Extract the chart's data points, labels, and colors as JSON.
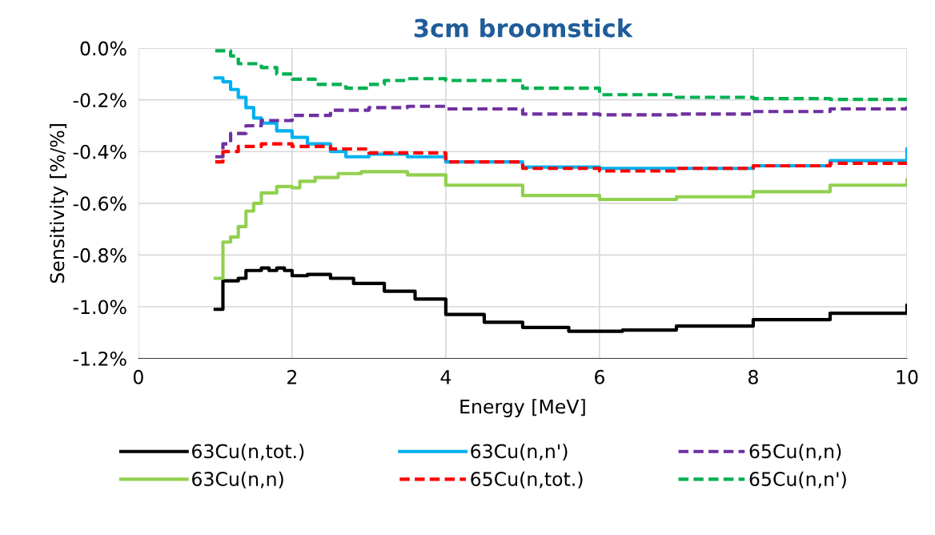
{
  "chart_data": {
    "type": "step",
    "title": "3cm broomstick",
    "xlabel": "Energy [MeV]",
    "ylabel": "Sensitivity [%/%]",
    "xlim": [
      0,
      10
    ],
    "xticks": [
      0,
      2,
      4,
      6,
      8,
      10
    ],
    "ylim": [
      -1.2,
      0
    ],
    "yticks": [
      {
        "value": -1.2,
        "label": "-1.2%"
      },
      {
        "value": -1.0,
        "label": "-1.0%"
      },
      {
        "value": -0.8,
        "label": "-0.8%"
      },
      {
        "value": -0.6,
        "label": "-0.6%"
      },
      {
        "value": -0.4,
        "label": "-0.4%"
      },
      {
        "value": -0.2,
        "label": "-0.2%"
      },
      {
        "value": 0,
        "label": "0.0%"
      }
    ],
    "grid": true,
    "legend": "bottom",
    "marker": "none",
    "series": [
      {
        "name": "63Cu(n,tot.)",
        "color": "#000000",
        "line_style": "solid",
        "x": [
          1.0,
          1.1,
          1.3,
          1.4,
          1.6,
          1.7,
          1.8,
          1.9,
          2.0,
          2.2,
          2.5,
          2.8,
          3.2,
          3.6,
          4.0,
          4.5,
          5.0,
          5.6,
          6.3,
          7,
          8,
          9,
          10
        ],
        "values": [
          -1.01,
          -0.9,
          -0.89,
          -0.86,
          -0.85,
          -0.86,
          -0.85,
          -0.86,
          -0.88,
          -0.875,
          -0.89,
          -0.91,
          -0.94,
          -0.97,
          -1.03,
          -1.06,
          -1.08,
          -1.095,
          -1.09,
          -1.075,
          -1.05,
          -1.025,
          -0.995
        ]
      },
      {
        "name": "63Cu(n,n)",
        "color": "#92d050",
        "line_style": "solid",
        "x": [
          1.0,
          1.1,
          1.2,
          1.3,
          1.4,
          1.5,
          1.6,
          1.8,
          2.0,
          2.1,
          2.3,
          2.6,
          2.9,
          3.5,
          4,
          5,
          6,
          7,
          8,
          9,
          10
        ],
        "values": [
          -0.89,
          -0.75,
          -0.73,
          -0.69,
          -0.63,
          -0.6,
          -0.56,
          -0.535,
          -0.54,
          -0.515,
          -0.5,
          -0.485,
          -0.478,
          -0.49,
          -0.53,
          -0.57,
          -0.585,
          -0.575,
          -0.555,
          -0.53,
          -0.51
        ]
      },
      {
        "name": "63Cu(n,n')",
        "color": "#00b0f0",
        "line_style": "solid",
        "x": [
          1.0,
          1.1,
          1.2,
          1.3,
          1.4,
          1.5,
          1.6,
          1.8,
          2.0,
          2.2,
          2.5,
          2.7,
          3,
          3.5,
          4,
          5,
          6,
          7,
          8,
          9,
          10
        ],
        "values": [
          -0.115,
          -0.13,
          -0.16,
          -0.19,
          -0.23,
          -0.27,
          -0.29,
          -0.32,
          -0.345,
          -0.37,
          -0.4,
          -0.42,
          -0.41,
          -0.42,
          -0.44,
          -0.46,
          -0.465,
          -0.465,
          -0.455,
          -0.435,
          -0.39
        ]
      },
      {
        "name": "65Cu(n,tot.)",
        "color": "#ff0000",
        "line_style": "dashed",
        "x": [
          1.0,
          1.1,
          1.3,
          1.6,
          2.0,
          2.5,
          3,
          4,
          5,
          6,
          7,
          8,
          9,
          10
        ],
        "values": [
          -0.44,
          -0.4,
          -0.38,
          -0.37,
          -0.38,
          -0.39,
          -0.405,
          -0.44,
          -0.465,
          -0.475,
          -0.465,
          -0.455,
          -0.445,
          -0.43
        ]
      },
      {
        "name": "65Cu(n,n)",
        "color": "#7030a0",
        "line_style": "dashed",
        "x": [
          1.0,
          1.1,
          1.2,
          1.4,
          1.6,
          2.0,
          2.5,
          3,
          3.5,
          4,
          5,
          6,
          7,
          8,
          9,
          10
        ],
        "values": [
          -0.42,
          -0.37,
          -0.33,
          -0.3,
          -0.28,
          -0.26,
          -0.24,
          -0.23,
          -0.225,
          -0.235,
          -0.255,
          -0.258,
          -0.255,
          -0.245,
          -0.235,
          -0.225
        ]
      },
      {
        "name": "65Cu(n,n')",
        "color": "#00b050",
        "line_style": "dashed",
        "x": [
          1.0,
          1.2,
          1.3,
          1.6,
          1.8,
          2.0,
          2.3,
          2.7,
          3.0,
          3.2,
          3.5,
          4,
          5,
          6,
          7,
          8,
          9,
          10
        ],
        "values": [
          -0.01,
          -0.03,
          -0.06,
          -0.075,
          -0.1,
          -0.12,
          -0.14,
          -0.155,
          -0.14,
          -0.125,
          -0.118,
          -0.125,
          -0.155,
          -0.18,
          -0.19,
          -0.195,
          -0.198,
          -0.2
        ]
      }
    ]
  }
}
